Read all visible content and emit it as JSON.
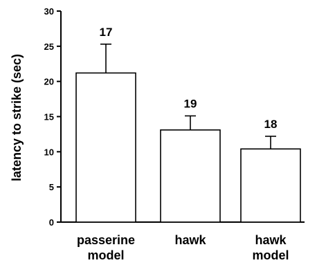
{
  "chart_data": {
    "type": "bar",
    "categories": [
      [
        "passerine",
        "model"
      ],
      [
        "hawk"
      ],
      [
        "hawk",
        "model"
      ]
    ],
    "values": [
      21.2,
      13.1,
      10.4
    ],
    "errors": [
      4.1,
      2.0,
      1.8
    ],
    "n_labels": [
      "17",
      "19",
      "18"
    ],
    "ylabel": "latency to strike (sec)",
    "ylim": [
      0,
      30
    ],
    "yticks": [
      0,
      5,
      10,
      15,
      20,
      25,
      30
    ],
    "grid": false,
    "legend": "none"
  }
}
